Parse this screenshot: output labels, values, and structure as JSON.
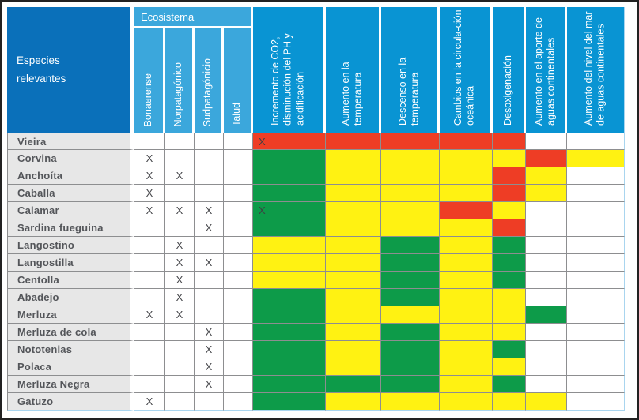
{
  "chart_data": {
    "type": "heatmap",
    "corner_header": "Especies relevantes",
    "group_header": "Ecosistema",
    "ecosystem_columns": [
      "Bonaerense",
      "Norpatagónico",
      "Sudpatagónicio",
      "Talud"
    ],
    "impact_columns": [
      "Incremento de CO2, disminución del PH y acidificación",
      "Aumento en la temperatura",
      "Descenso en la temperatura",
      "Cambios en la circula-ción oceánica",
      "Desoxigenación",
      "Aumento en el aporte de aguas continentales",
      "Aumento del nivel del mar de aguas continentales"
    ],
    "cell_code_legend": "R=rojo, Y=amarillo, G=verde, W=blanco/sin dato; sufijo X = marca X en la celda",
    "color_key": {
      "R": "#EE3D25",
      "Y": "#FFF212",
      "G": "#0D9B49",
      "W": "#FFFFFF"
    },
    "mark_symbol": "X",
    "header_colors": {
      "species_block": "#0A70BA",
      "ecosystem_block": "#3BA7DC",
      "impact_block": "#0994D3"
    },
    "rows": [
      {
        "species": "Vieira",
        "ecosystem_marks": [
          "",
          "",
          "",
          ""
        ],
        "impact_levels": [
          "RX",
          "R",
          "R",
          "R",
          "R",
          "W",
          "W"
        ]
      },
      {
        "species": "Corvina",
        "ecosystem_marks": [
          "X",
          "",
          "",
          ""
        ],
        "impact_levels": [
          "G",
          "Y",
          "Y",
          "Y",
          "Y",
          "R",
          "Y"
        ]
      },
      {
        "species": "Anchoíta",
        "ecosystem_marks": [
          "X",
          "X",
          "",
          ""
        ],
        "impact_levels": [
          "G",
          "Y",
          "Y",
          "Y",
          "R",
          "Y",
          "W"
        ]
      },
      {
        "species": "Caballa",
        "ecosystem_marks": [
          "X",
          "",
          "",
          ""
        ],
        "impact_levels": [
          "G",
          "Y",
          "Y",
          "Y",
          "R",
          "Y",
          "W"
        ]
      },
      {
        "species": "Calamar",
        "ecosystem_marks": [
          "X",
          "X",
          "X",
          ""
        ],
        "impact_levels": [
          "GX",
          "Y",
          "Y",
          "R",
          "Y",
          "W",
          "W"
        ]
      },
      {
        "species": "Sardina fueguina",
        "ecosystem_marks": [
          "",
          "",
          "X",
          ""
        ],
        "impact_levels": [
          "G",
          "Y",
          "Y",
          "Y",
          "R",
          "W",
          "W"
        ]
      },
      {
        "species": "Langostino",
        "ecosystem_marks": [
          "",
          "X",
          "",
          ""
        ],
        "impact_levels": [
          "Y",
          "Y",
          "G",
          "Y",
          "G",
          "W",
          "W"
        ]
      },
      {
        "species": "Langostilla",
        "ecosystem_marks": [
          "",
          "X",
          "X",
          ""
        ],
        "impact_levels": [
          "Y",
          "Y",
          "G",
          "Y",
          "G",
          "W",
          "W"
        ]
      },
      {
        "species": "Centolla",
        "ecosystem_marks": [
          "",
          "X",
          "",
          ""
        ],
        "impact_levels": [
          "Y",
          "Y",
          "G",
          "Y",
          "G",
          "W",
          "W"
        ]
      },
      {
        "species": "Abadejo",
        "ecosystem_marks": [
          "",
          "X",
          "",
          ""
        ],
        "impact_levels": [
          "G",
          "Y",
          "G",
          "Y",
          "Y",
          "W",
          "W"
        ]
      },
      {
        "species": "Merluza",
        "ecosystem_marks": [
          "X",
          "X",
          "",
          ""
        ],
        "impact_levels": [
          "G",
          "Y",
          "Y",
          "Y",
          "Y",
          "G",
          "W"
        ]
      },
      {
        "species": "Merluza de cola",
        "ecosystem_marks": [
          "",
          "",
          "X",
          ""
        ],
        "impact_levels": [
          "G",
          "Y",
          "G",
          "Y",
          "Y",
          "W",
          "W"
        ]
      },
      {
        "species": "Nototenias",
        "ecosystem_marks": [
          "",
          "",
          "X",
          ""
        ],
        "impact_levels": [
          "G",
          "Y",
          "G",
          "Y",
          "G",
          "W",
          "W"
        ]
      },
      {
        "species": "Polaca",
        "ecosystem_marks": [
          "",
          "",
          "X",
          ""
        ],
        "impact_levels": [
          "G",
          "Y",
          "G",
          "Y",
          "Y",
          "W",
          "W"
        ]
      },
      {
        "species": "Merluza Negra",
        "ecosystem_marks": [
          "",
          "",
          "X",
          ""
        ],
        "impact_levels": [
          "G",
          "G",
          "G",
          "Y",
          "G",
          "W",
          "W"
        ]
      },
      {
        "species": "Gatuzo",
        "ecosystem_marks": [
          "X",
          "",
          "",
          ""
        ],
        "impact_levels": [
          "G",
          "Y",
          "Y",
          "Y",
          "Y",
          "Y",
          "W"
        ]
      }
    ]
  }
}
